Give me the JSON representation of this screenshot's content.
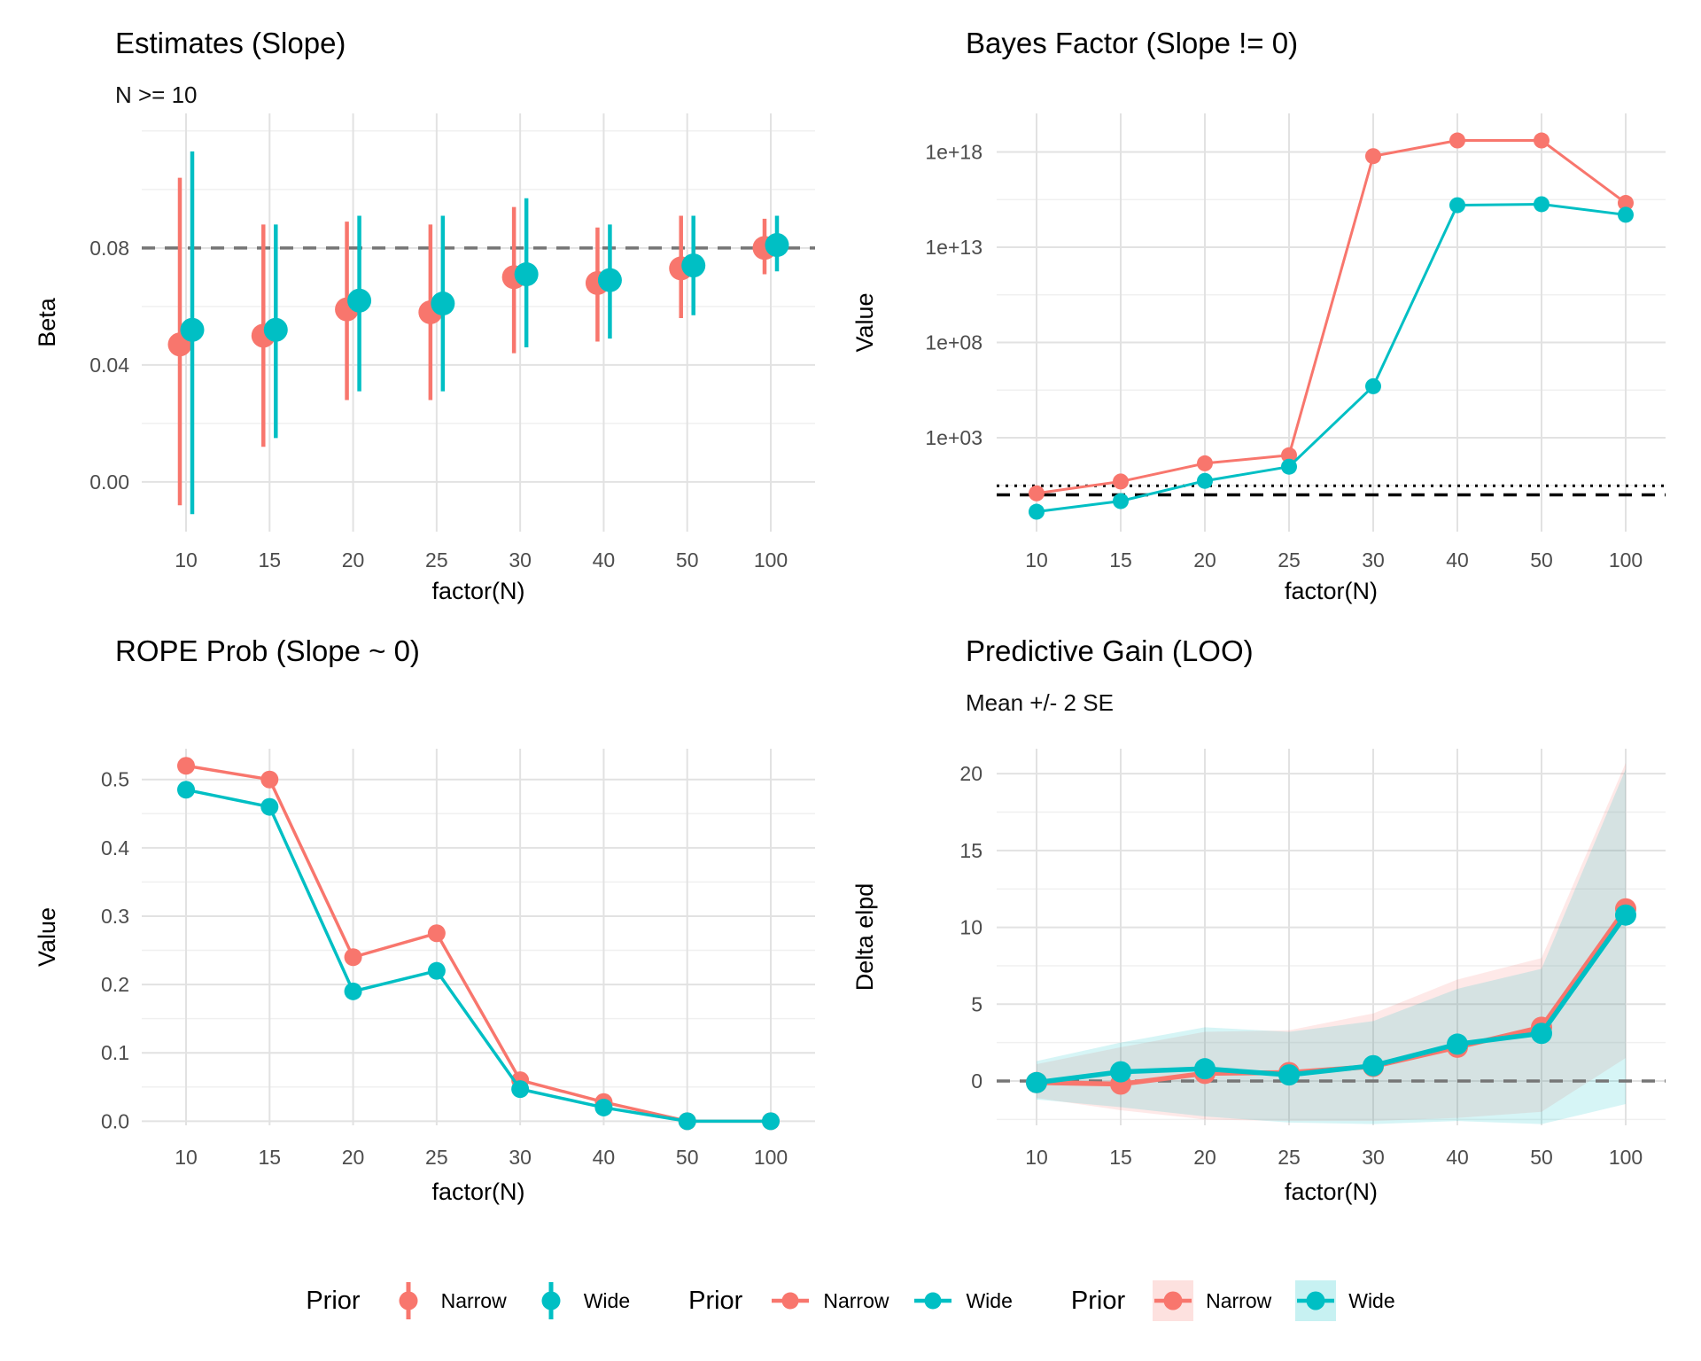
{
  "page": {
    "background": "#ffffff"
  },
  "colors": {
    "narrow": "#F8766D",
    "wide": "#00BFC4",
    "narrow_ribbon": "rgba(248,118,109,0.16)",
    "wide_ribbon": "rgba(0,191,196,0.16)",
    "narrow_key_fill": "rgba(248,118,109,0.22)",
    "wide_key_fill": "rgba(0,191,196,0.22)",
    "grid_major": "#E2E2E2",
    "grid_minor": "#F0F0F0",
    "ref_gray": "#757575",
    "ref_black": "#000000",
    "tick_text": "#4D4D4D",
    "axis_text": "#000000"
  },
  "chart_data": [
    {
      "type": "pointrange",
      "title": "Estimates (Slope)",
      "subtitle": "N >= 10",
      "xlabel": "factor(N)",
      "ylabel": "Beta",
      "scale": "linear",
      "x_categories": [
        "10",
        "15",
        "20",
        "25",
        "30",
        "40",
        "50",
        "100"
      ],
      "ylim": [
        -0.017,
        0.126
      ],
      "yticks": [
        {
          "v": 0.0,
          "label": "0.00"
        },
        {
          "v": 0.04,
          "label": "0.04"
        },
        {
          "v": 0.08,
          "label": "0.08"
        }
      ],
      "yticks_minor": [
        0.02,
        0.06,
        0.1,
        0.12
      ],
      "hlines": [
        {
          "v": 0.08,
          "style": "dashed",
          "color": "ref_gray"
        }
      ],
      "series": [
        {
          "name": "Narrow",
          "color": "narrow",
          "est": [
            0.047,
            0.05,
            0.059,
            0.058,
            0.07,
            0.068,
            0.073,
            0.08
          ],
          "lo": [
            -0.008,
            0.012,
            0.028,
            0.028,
            0.044,
            0.048,
            0.056,
            0.071
          ],
          "hi": [
            0.104,
            0.088,
            0.089,
            0.088,
            0.094,
            0.087,
            0.091,
            0.09
          ]
        },
        {
          "name": "Wide",
          "color": "wide",
          "est": [
            0.052,
            0.052,
            0.062,
            0.061,
            0.071,
            0.069,
            0.074,
            0.081
          ],
          "lo": [
            -0.011,
            0.015,
            0.031,
            0.031,
            0.046,
            0.049,
            0.057,
            0.072
          ],
          "hi": [
            0.113,
            0.088,
            0.091,
            0.091,
            0.097,
            0.088,
            0.091,
            0.091
          ]
        }
      ]
    },
    {
      "type": "line",
      "title": "Bayes Factor (Slope != 0)",
      "subtitle": "",
      "xlabel": "factor(N)",
      "ylabel": "Value",
      "scale": "log10",
      "x_categories": [
        "10",
        "15",
        "20",
        "25",
        "30",
        "40",
        "50",
        "100"
      ],
      "ylim": [
        0.0117,
        1.05e+20
      ],
      "yticks": [
        {
          "v": 1000.0,
          "label": "1e+03"
        },
        {
          "v": 100000000.0,
          "label": "1e+08"
        },
        {
          "v": 10000000000000.0,
          "label": "1e+13"
        },
        {
          "v": 1e+18,
          "label": "1e+18"
        }
      ],
      "yticks_minor": [
        3.16,
        316000.0,
        31600000000.0,
        3160000000000000.0
      ],
      "hlines": [
        {
          "v": 3,
          "style": "dotted",
          "color": "ref_black"
        },
        {
          "v": 1,
          "style": "dashed",
          "color": "ref_black"
        }
      ],
      "series": [
        {
          "name": "Narrow",
          "color": "narrow",
          "values": [
            1.2,
            5,
            45,
            120,
            6e+17,
            4e+18,
            4e+18,
            2100000000000000.0
          ]
        },
        {
          "name": "Wide",
          "color": "wide",
          "values": [
            0.13,
            0.47,
            5.4,
            30,
            500000.0,
            1600000000000000.0,
            1800000000000000.0,
            500000000000000.0
          ]
        }
      ]
    },
    {
      "type": "line",
      "title": "ROPE Prob (Slope ~ 0)",
      "subtitle": "",
      "xlabel": "factor(N)",
      "ylabel": "Value",
      "scale": "linear",
      "x_categories": [
        "10",
        "15",
        "20",
        "25",
        "30",
        "40",
        "50",
        "100"
      ],
      "ylim": [
        -0.006,
        0.545
      ],
      "yticks": [
        {
          "v": 0.0,
          "label": "0.0"
        },
        {
          "v": 0.1,
          "label": "0.1"
        },
        {
          "v": 0.2,
          "label": "0.2"
        },
        {
          "v": 0.3,
          "label": "0.3"
        },
        {
          "v": 0.4,
          "label": "0.4"
        },
        {
          "v": 0.5,
          "label": "0.5"
        }
      ],
      "yticks_minor": [
        0.05,
        0.15,
        0.25,
        0.35,
        0.45
      ],
      "hlines": [],
      "series": [
        {
          "name": "Narrow",
          "color": "narrow",
          "values": [
            0.52,
            0.5,
            0.24,
            0.275,
            0.06,
            0.028,
            0.0,
            0.0
          ]
        },
        {
          "name": "Wide",
          "color": "wide",
          "values": [
            0.485,
            0.46,
            0.19,
            0.22,
            0.047,
            0.02,
            0.0,
            0.0
          ]
        }
      ]
    },
    {
      "type": "ribbon-line",
      "title": "Predictive Gain (LOO)",
      "subtitle": "Mean +/- 2 SE",
      "xlabel": "factor(N)",
      "ylabel": "Delta elpd",
      "scale": "linear",
      "x_categories": [
        "10",
        "15",
        "20",
        "25",
        "30",
        "40",
        "50",
        "100"
      ],
      "ylim": [
        -2.88,
        21.62
      ],
      "yticks": [
        {
          "v": 0,
          "label": "0"
        },
        {
          "v": 5,
          "label": "5"
        },
        {
          "v": 10,
          "label": "10"
        },
        {
          "v": 15,
          "label": "15"
        },
        {
          "v": 20,
          "label": "20"
        }
      ],
      "yticks_minor": [
        -2.5,
        2.5,
        7.5,
        12.5,
        17.5
      ],
      "hlines": [
        {
          "v": 0,
          "style": "dashed",
          "color": "ref_gray"
        }
      ],
      "series": [
        {
          "name": "Narrow",
          "color": "narrow",
          "values": [
            -0.1,
            -0.2,
            0.5,
            0.55,
            0.95,
            2.2,
            3.5,
            11.2
          ],
          "ribbon_lo": [
            -1.1,
            -1.9,
            -2.5,
            -2.6,
            -2.6,
            -2.4,
            -2.0,
            1.5
          ],
          "ribbon_hi": [
            1.1,
            2.2,
            3.2,
            3.3,
            4.4,
            6.6,
            8.0,
            20.7
          ]
        },
        {
          "name": "Wide",
          "color": "wide",
          "values": [
            -0.1,
            0.6,
            0.8,
            0.4,
            1.0,
            2.4,
            3.1,
            10.8
          ],
          "ribbon_lo": [
            -1.2,
            -1.7,
            -2.3,
            -2.7,
            -2.8,
            -2.6,
            -2.8,
            -1.5
          ],
          "ribbon_hi": [
            1.3,
            2.5,
            3.5,
            3.2,
            3.9,
            6.0,
            7.3,
            20.3
          ]
        }
      ]
    }
  ],
  "legend": {
    "groups": [
      {
        "title": "Prior",
        "glyph": "pointrange",
        "items": [
          {
            "label": "Narrow",
            "color": "narrow"
          },
          {
            "label": "Wide",
            "color": "wide"
          }
        ]
      },
      {
        "title": "Prior",
        "glyph": "line",
        "items": [
          {
            "label": "Narrow",
            "color": "narrow"
          },
          {
            "label": "Wide",
            "color": "wide"
          }
        ]
      },
      {
        "title": "Prior",
        "glyph": "ribbon",
        "items": [
          {
            "label": "Narrow",
            "color": "narrow"
          },
          {
            "label": "Wide",
            "color": "wide"
          }
        ]
      }
    ]
  }
}
